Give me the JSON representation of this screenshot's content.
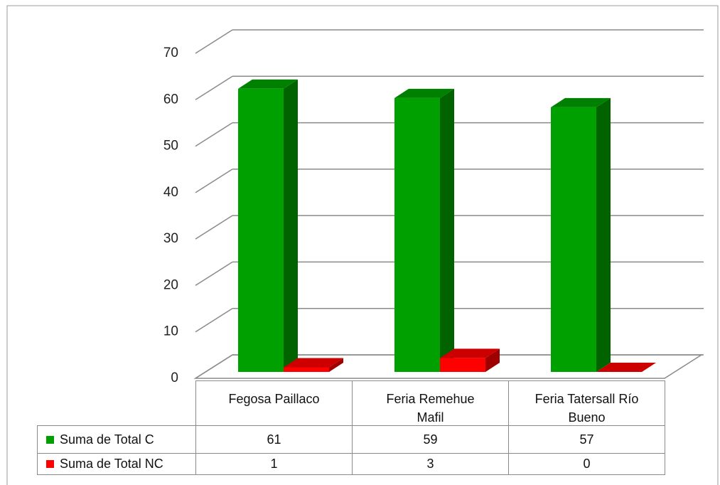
{
  "chart_data": {
    "type": "bar3d",
    "categories": [
      "Fegosa Paillaco",
      "Feria Remehue Mafil",
      "Feria Tatersall Río Bueno"
    ],
    "series": [
      {
        "name": "Suma de Total C",
        "color": "#00a000",
        "values": [
          61,
          59,
          57
        ]
      },
      {
        "name": "Suma de Total NC",
        "color": "#ff0000",
        "values": [
          1,
          3,
          0
        ]
      }
    ],
    "ylim": [
      0,
      70
    ],
    "yticks": [
      0,
      10,
      20,
      30,
      40,
      50,
      60,
      70
    ],
    "grid": true,
    "data_table": true
  }
}
